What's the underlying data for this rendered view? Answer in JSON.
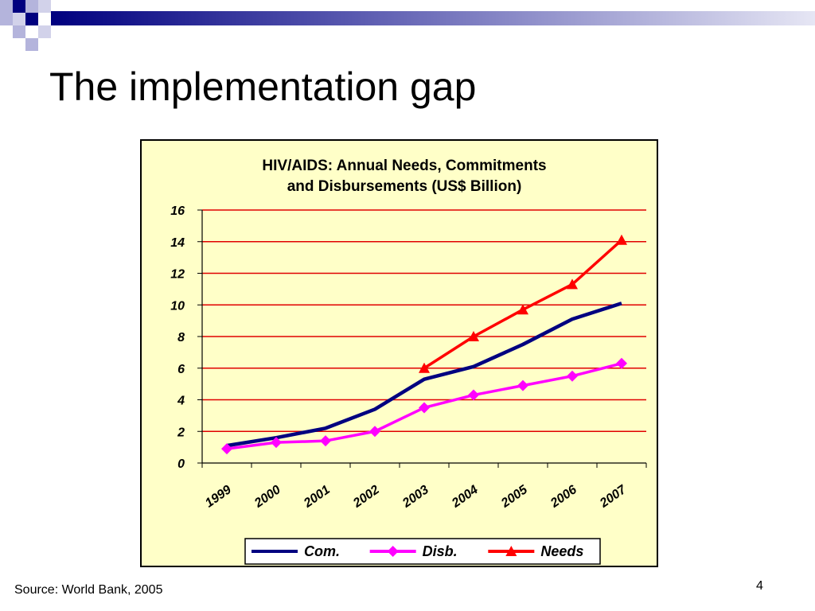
{
  "slide": {
    "title": "The implementation gap",
    "source": "Source: World Bank, 2005",
    "page_number": "4"
  },
  "colors": {
    "accent_dark": "#00007f",
    "accent_light": "#b4b4dc",
    "chart_background": "#ffffc8",
    "grid_line": "#e00000"
  },
  "chart_data": {
    "type": "line",
    "title_lines": [
      "HIV/AIDS:  Annual Needs, Commitments",
      "and  Disbursements (US$ Billion)"
    ],
    "categories": [
      "1999",
      "2000",
      "2001",
      "2002",
      "2003",
      "2004",
      "2005",
      "2006",
      "2007"
    ],
    "ylim": [
      0,
      16
    ],
    "yticks": [
      "0",
      "2",
      "4",
      "6",
      "8",
      "10",
      "12",
      "14",
      "16"
    ],
    "grid": true,
    "legend_position": "bottom",
    "series": [
      {
        "name": "Com.",
        "color": "#000080",
        "marker": "none",
        "values": [
          1.1,
          1.6,
          2.2,
          3.4,
          5.3,
          6.1,
          7.5,
          9.1,
          10.1
        ]
      },
      {
        "name": "Disb.",
        "color": "#ff00ff",
        "marker": "diamond",
        "values": [
          0.9,
          1.3,
          1.4,
          2.0,
          3.5,
          4.3,
          4.9,
          5.5,
          6.3
        ]
      },
      {
        "name": "Needs",
        "color": "#ff0000",
        "marker": "triangle",
        "values": [
          null,
          null,
          null,
          null,
          6.0,
          8.0,
          9.7,
          11.3,
          14.1
        ]
      }
    ]
  }
}
